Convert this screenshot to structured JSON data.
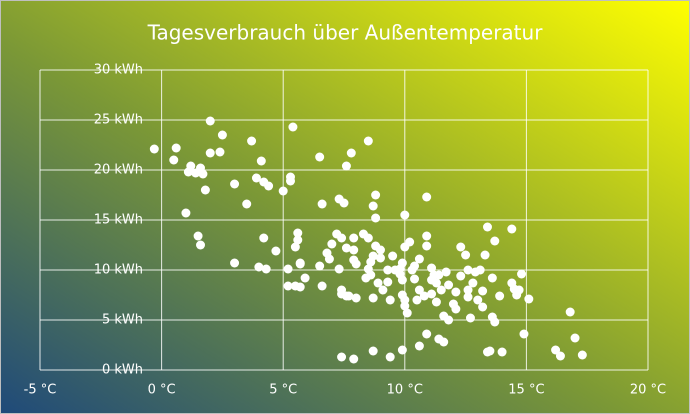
{
  "chart_data": {
    "type": "scatter",
    "title": "Tagesverbrauch über Außentemperatur",
    "color": "#ffffff",
    "grid": true,
    "xlim": [
      -5,
      20
    ],
    "ylim": [
      0,
      30
    ],
    "xticks": [
      {
        "value": -5,
        "label": "-5 °C"
      },
      {
        "value": 0,
        "label": "0 °C"
      },
      {
        "value": 5,
        "label": "5 °C"
      },
      {
        "value": 10,
        "label": "10 °C"
      },
      {
        "value": 15,
        "label": "15 °C"
      },
      {
        "value": 20,
        "label": "20 °C"
      }
    ],
    "yticks": [
      {
        "value": 0,
        "label": "0 kWh"
      },
      {
        "value": 5,
        "label": "5 kWh"
      },
      {
        "value": 10,
        "label": "10 kWh"
      },
      {
        "value": 15,
        "label": "15 kWh"
      },
      {
        "value": 20,
        "label": "20 kWh"
      },
      {
        "value": 25,
        "label": "25 kWh"
      },
      {
        "value": 30,
        "label": "30 kWh"
      }
    ],
    "x": [
      -0.3,
      0.6,
      0.5,
      1.2,
      1.6,
      1.7,
      2.0,
      2.0,
      2.4,
      2.5,
      3.7,
      4.1,
      4.2,
      3.9,
      3.0,
      3.5,
      1.8,
      1.1,
      1.4,
      5.4,
      5.3,
      5.3,
      5.0,
      4.4,
      1.0,
      1.5,
      1.6,
      3.0,
      4.0,
      4.3,
      4.2,
      4.7,
      5.2,
      5.2,
      5.6,
      5.6,
      5.5,
      5.7,
      5.9,
      5.7,
      5.5,
      5.7,
      6.5,
      6.6,
      6.5,
      6.6,
      7.0,
      6.8,
      6.9,
      7.3,
      7.2,
      7.4,
      7.6,
      7.4,
      7.4,
      7.6,
      7.7,
      8.0,
      7.4,
      7.9,
      7.3,
      7.5,
      7.6,
      7.8,
      8.5,
      7.9,
      7.9,
      7.9,
      8.0,
      8.3,
      8.5,
      8.5,
      8.4,
      8.6,
      8.6,
      8.7,
      8.8,
      8.7,
      8.8,
      9.0,
      9.0,
      8.8,
      8.9,
      8.7,
      9.1,
      9.3,
      9.3,
      9.4,
      9.5,
      9.6,
      9.8,
      9.9,
      10.0,
      10.0,
      9.9,
      9.8,
      9.9,
      10.0,
      10.0,
      10.1,
      8.7,
      9.4,
      9.9,
      10.6,
      10.9,
      10.2,
      10.6,
      10.4,
      10.3,
      10.4,
      10.6,
      10.5,
      10.8,
      10.9,
      10.9,
      11.1,
      11.1,
      11.1,
      11.2,
      11.3,
      11.4,
      11.3,
      11.5,
      11.6,
      11.7,
      11.8,
      12.0,
      11.8,
      10.9,
      11.4,
      11.6,
      12.1,
      12.1,
      12.3,
      12.3,
      12.5,
      12.6,
      12.8,
      12.6,
      12.6,
      12.7,
      12.9,
      13.1,
      13.0,
      13.2,
      13.2,
      13.3,
      13.4,
      13.7,
      13.6,
      13.6,
      13.7,
      13.9,
      13.5,
      14.0,
      13.4,
      14.4,
      14.4,
      14.5,
      14.7,
      14.6,
      14.8,
      15.1,
      14.9,
      16.2,
      16.4,
      16.8,
      17.0,
      17.3
    ],
    "values": [
      22.1,
      22.2,
      21.0,
      20.4,
      20.2,
      19.6,
      24.9,
      21.7,
      21.8,
      23.5,
      22.9,
      20.9,
      18.8,
      19.2,
      18.6,
      16.6,
      18.0,
      19.8,
      19.7,
      24.3,
      19.3,
      18.9,
      17.9,
      18.4,
      15.7,
      13.4,
      12.5,
      10.7,
      10.3,
      10.1,
      13.2,
      11.9,
      10.1,
      8.4,
      13.7,
      13.0,
      12.3,
      10.6,
      9.2,
      8.3,
      8.4,
      10.7,
      21.3,
      16.6,
      10.4,
      8.4,
      12.6,
      11.7,
      11.1,
      10.1,
      13.6,
      13.2,
      12.2,
      8.0,
      7.6,
      7.4,
      7.4,
      7.2,
      1.3,
      1.1,
      17.1,
      16.7,
      20.4,
      21.7,
      22.9,
      13.2,
      12.0,
      11.0,
      10.6,
      13.6,
      13.2,
      10.1,
      9.2,
      9.5,
      10.8,
      11.4,
      15.2,
      16.4,
      17.5,
      11.2,
      12.0,
      12.4,
      8.7,
      7.2,
      8.0,
      8.8,
      10.0,
      7.0,
      11.4,
      10.0,
      10.1,
      9.0,
      15.5,
      12.3,
      10.7,
      9.6,
      7.5,
      7.0,
      6.4,
      5.7,
      1.9,
      1.3,
      2.0,
      2.4,
      17.3,
      12.8,
      11.1,
      10.4,
      10.0,
      9.1,
      8.0,
      7.0,
      7.4,
      13.4,
      12.4,
      10.2,
      9.0,
      7.6,
      9.5,
      8.7,
      9.5,
      6.8,
      8.0,
      5.4,
      9.8,
      8.5,
      6.6,
      5.0,
      3.6,
      3.1,
      2.8,
      7.8,
      6.1,
      9.4,
      12.3,
      11.5,
      10.0,
      8.7,
      8.0,
      7.3,
      5.2,
      9.8,
      10.0,
      7.0,
      7.9,
      6.3,
      11.5,
      14.3,
      12.9,
      9.2,
      5.3,
      4.8,
      7.4,
      1.9,
      1.8,
      1.8,
      14.1,
      8.7,
      8.1,
      8.0,
      7.5,
      9.6,
      7.1,
      3.6,
      2.0,
      1.4,
      5.8,
      3.2,
      1.5
    ]
  }
}
